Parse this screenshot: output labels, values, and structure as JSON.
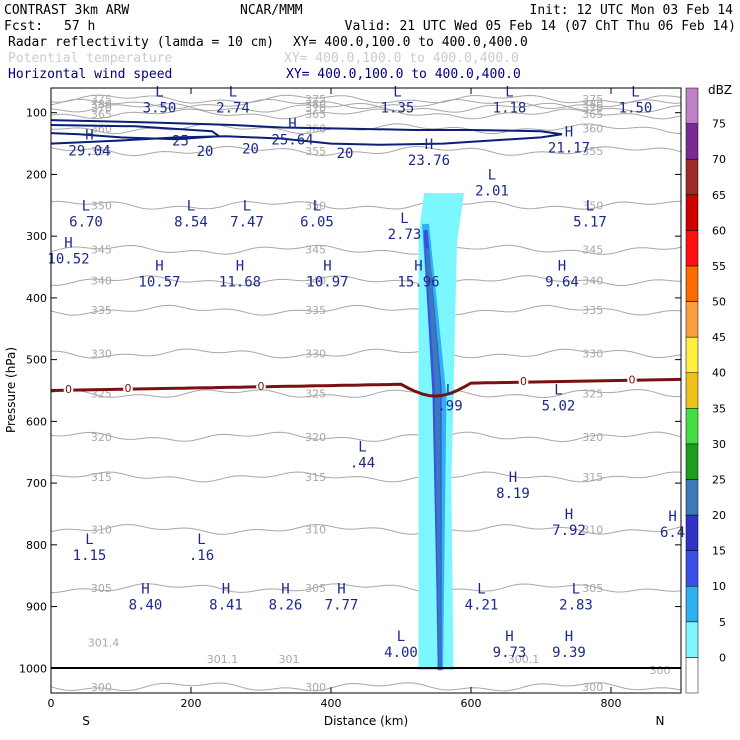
{
  "header": {
    "model": "CONTRAST  3km ARW",
    "center": "NCAR/MMM",
    "init": "Init: 12 UTC Mon 03 Feb 14",
    "fcst_label": "Fcst:",
    "fcst_value": "57 h",
    "valid": "Valid: 21 UTC Wed 05 Feb 14 (07 ChT Thu 06 Feb 14)"
  },
  "fields": [
    {
      "name": "Radar reflectivity (lamda = 10 cm)",
      "xy": "XY= 400.0,100.0 to 400.0,400.0",
      "color": "#000000"
    },
    {
      "name": "Potential temperature",
      "xy": "XY= 400.0,100.0 to 400.0,400.0",
      "color": "#c8c8c8"
    },
    {
      "name": "Horizontal wind speed",
      "xy": "XY= 400.0,100.0 to 400.0,400.0",
      "color": "#00007f"
    }
  ],
  "colors": {
    "theta": "#a8a8a8",
    "wind": "#0a1f78",
    "wind_text": "#1a2a8a",
    "freezing": "#7a1010",
    "ground": "#000000"
  },
  "chart_data": {
    "type": "cross-section",
    "xlabel": "Distance (km)",
    "ylabel": "Pressure (hPa)",
    "xlim": [
      0,
      900
    ],
    "ylim": [
      1040,
      60
    ],
    "x_ticks": [
      0,
      200,
      400,
      600,
      800
    ],
    "y_ticks": [
      100,
      200,
      300,
      400,
      500,
      600,
      700,
      800,
      900,
      1000
    ],
    "left_end": "S",
    "right_end": "N",
    "colorbar": {
      "unit": "dBZ",
      "levels": [
        0,
        5,
        10,
        15,
        20,
        25,
        30,
        35,
        40,
        45,
        50,
        55,
        60,
        65,
        70,
        75
      ],
      "colors": [
        "#ffffff",
        "#7df7ff",
        "#2fb0f0",
        "#3a4ee8",
        "#3232c8",
        "#3a7ab8",
        "#1e9e1e",
        "#44dd44",
        "#eec21a",
        "#fff040",
        "#f8a040",
        "#ff6a00",
        "#ff1010",
        "#cc0000",
        "#9c2a2a",
        "#7a2a90",
        "#c080c8"
      ]
    },
    "theta_contours": [
      {
        "level": 300,
        "label": "300",
        "p": 1030
      },
      {
        "level": 305,
        "label": "305",
        "p": 870
      },
      {
        "level": 310,
        "label": "310",
        "p": 775
      },
      {
        "level": 315,
        "label": "315",
        "p": 690
      },
      {
        "level": 320,
        "label": "320",
        "p": 625
      },
      {
        "level": 325,
        "label": "325",
        "p": 555
      },
      {
        "level": 330,
        "label": "330",
        "p": 490
      },
      {
        "level": 335,
        "label": "335",
        "p": 420
      },
      {
        "level": 340,
        "label": "340",
        "p": 372
      },
      {
        "level": 345,
        "label": "345",
        "p": 322
      },
      {
        "level": 350,
        "label": "350",
        "p": 250
      },
      {
        "level": 355,
        "label": "355",
        "p": 162
      },
      {
        "level": 360,
        "label": "360",
        "p": 126
      },
      {
        "level": 365,
        "label": "365",
        "p": 102
      },
      {
        "level": 370,
        "label": "370",
        "p": 92
      },
      {
        "level": 375,
        "label": "375",
        "p": 78
      },
      {
        "level": 380,
        "label": "380",
        "p": 86
      }
    ],
    "theta_labels": [
      {
        "text": "301.4",
        "x": 75,
        "p": 958
      },
      {
        "text": "301.1",
        "x": 245,
        "p": 985
      },
      {
        "text": "301",
        "x": 340,
        "p": 985
      },
      {
        "text": "300.1",
        "x": 675,
        "p": 985
      },
      {
        "text": "300",
        "x": 870,
        "p": 1003
      }
    ],
    "wind_contours": [
      {
        "level": 20,
        "label": "20"
      },
      {
        "level": 25,
        "label": "25"
      }
    ],
    "wind_extremes": [
      {
        "kind": "L",
        "value": "3.50",
        "x": 155,
        "p": 80
      },
      {
        "kind": "L",
        "value": "2.74",
        "x": 260,
        "p": 80
      },
      {
        "kind": "L",
        "value": "1.35",
        "x": 495,
        "p": 80
      },
      {
        "kind": "L",
        "value": "1.18",
        "x": 655,
        "p": 80
      },
      {
        "kind": "L",
        "value": "1.50",
        "x": 835,
        "p": 80
      },
      {
        "kind": "H",
        "value": "29.04",
        "x": 55,
        "p": 150
      },
      {
        "kind": "H",
        "value": "25.64",
        "x": 345,
        "p": 132
      },
      {
        "kind": "H",
        "value": "23.76",
        "x": 540,
        "p": 165
      },
      {
        "kind": "H",
        "value": "21.17",
        "x": 740,
        "p": 145
      },
      {
        "kind": "L",
        "value": "2.01",
        "x": 630,
        "p": 215
      },
      {
        "kind": "L",
        "value": "6.70",
        "x": 50,
        "p": 265
      },
      {
        "kind": "L",
        "value": "8.54",
        "x": 200,
        "p": 265
      },
      {
        "kind": "L",
        "value": "7.47",
        "x": 280,
        "p": 265
      },
      {
        "kind": "L",
        "value": "6.05",
        "x": 380,
        "p": 265
      },
      {
        "kind": "L",
        "value": "2.73",
        "x": 505,
        "p": 285
      },
      {
        "kind": "L",
        "value": "5.17",
        "x": 770,
        "p": 265
      },
      {
        "kind": "H",
        "value": "10.52",
        "x": 25,
        "p": 325
      },
      {
        "kind": "H",
        "value": "10.57",
        "x": 155,
        "p": 362
      },
      {
        "kind": "H",
        "value": "11.68",
        "x": 270,
        "p": 362
      },
      {
        "kind": "H",
        "value": "10.97",
        "x": 395,
        "p": 362
      },
      {
        "kind": "H",
        "value": "15.96",
        "x": 525,
        "p": 362
      },
      {
        "kind": "H",
        "value": "9.64",
        "x": 730,
        "p": 362
      },
      {
        "kind": "L",
        "value": ".99",
        "x": 570,
        "p": 563
      },
      {
        "kind": "L",
        "value": "5.02",
        "x": 725,
        "p": 563
      },
      {
        "kind": "L",
        "value": ".44",
        "x": 445,
        "p": 655
      },
      {
        "kind": "H",
        "value": "8.19",
        "x": 660,
        "p": 705
      },
      {
        "kind": "H",
        "value": "7.92",
        "x": 740,
        "p": 765
      },
      {
        "kind": "H",
        "value": "6.4",
        "x": 888,
        "p": 768
      },
      {
        "kind": "L",
        "value": "1.15",
        "x": 55,
        "p": 805
      },
      {
        "kind": "L",
        "value": ".16",
        "x": 215,
        "p": 805
      },
      {
        "kind": "H",
        "value": "8.40",
        "x": 135,
        "p": 885
      },
      {
        "kind": "H",
        "value": "8.41",
        "x": 250,
        "p": 885
      },
      {
        "kind": "H",
        "value": "8.26",
        "x": 335,
        "p": 885
      },
      {
        "kind": "H",
        "value": "7.77",
        "x": 415,
        "p": 885
      },
      {
        "kind": "L",
        "value": "4.21",
        "x": 615,
        "p": 885
      },
      {
        "kind": "L",
        "value": "2.83",
        "x": 750,
        "p": 885
      },
      {
        "kind": "L",
        "value": "4.00",
        "x": 500,
        "p": 962
      },
      {
        "kind": "H",
        "value": "9.73",
        "x": 655,
        "p": 962
      },
      {
        "kind": "H",
        "value": "9.39",
        "x": 740,
        "p": 962
      }
    ],
    "freezing_level": {
      "label": "0",
      "p_mean": 550
    },
    "reflectivity_column": {
      "x_range_km": [
        525,
        580
      ],
      "p_range": [
        230,
        1003
      ],
      "max_dbz": 25
    }
  }
}
